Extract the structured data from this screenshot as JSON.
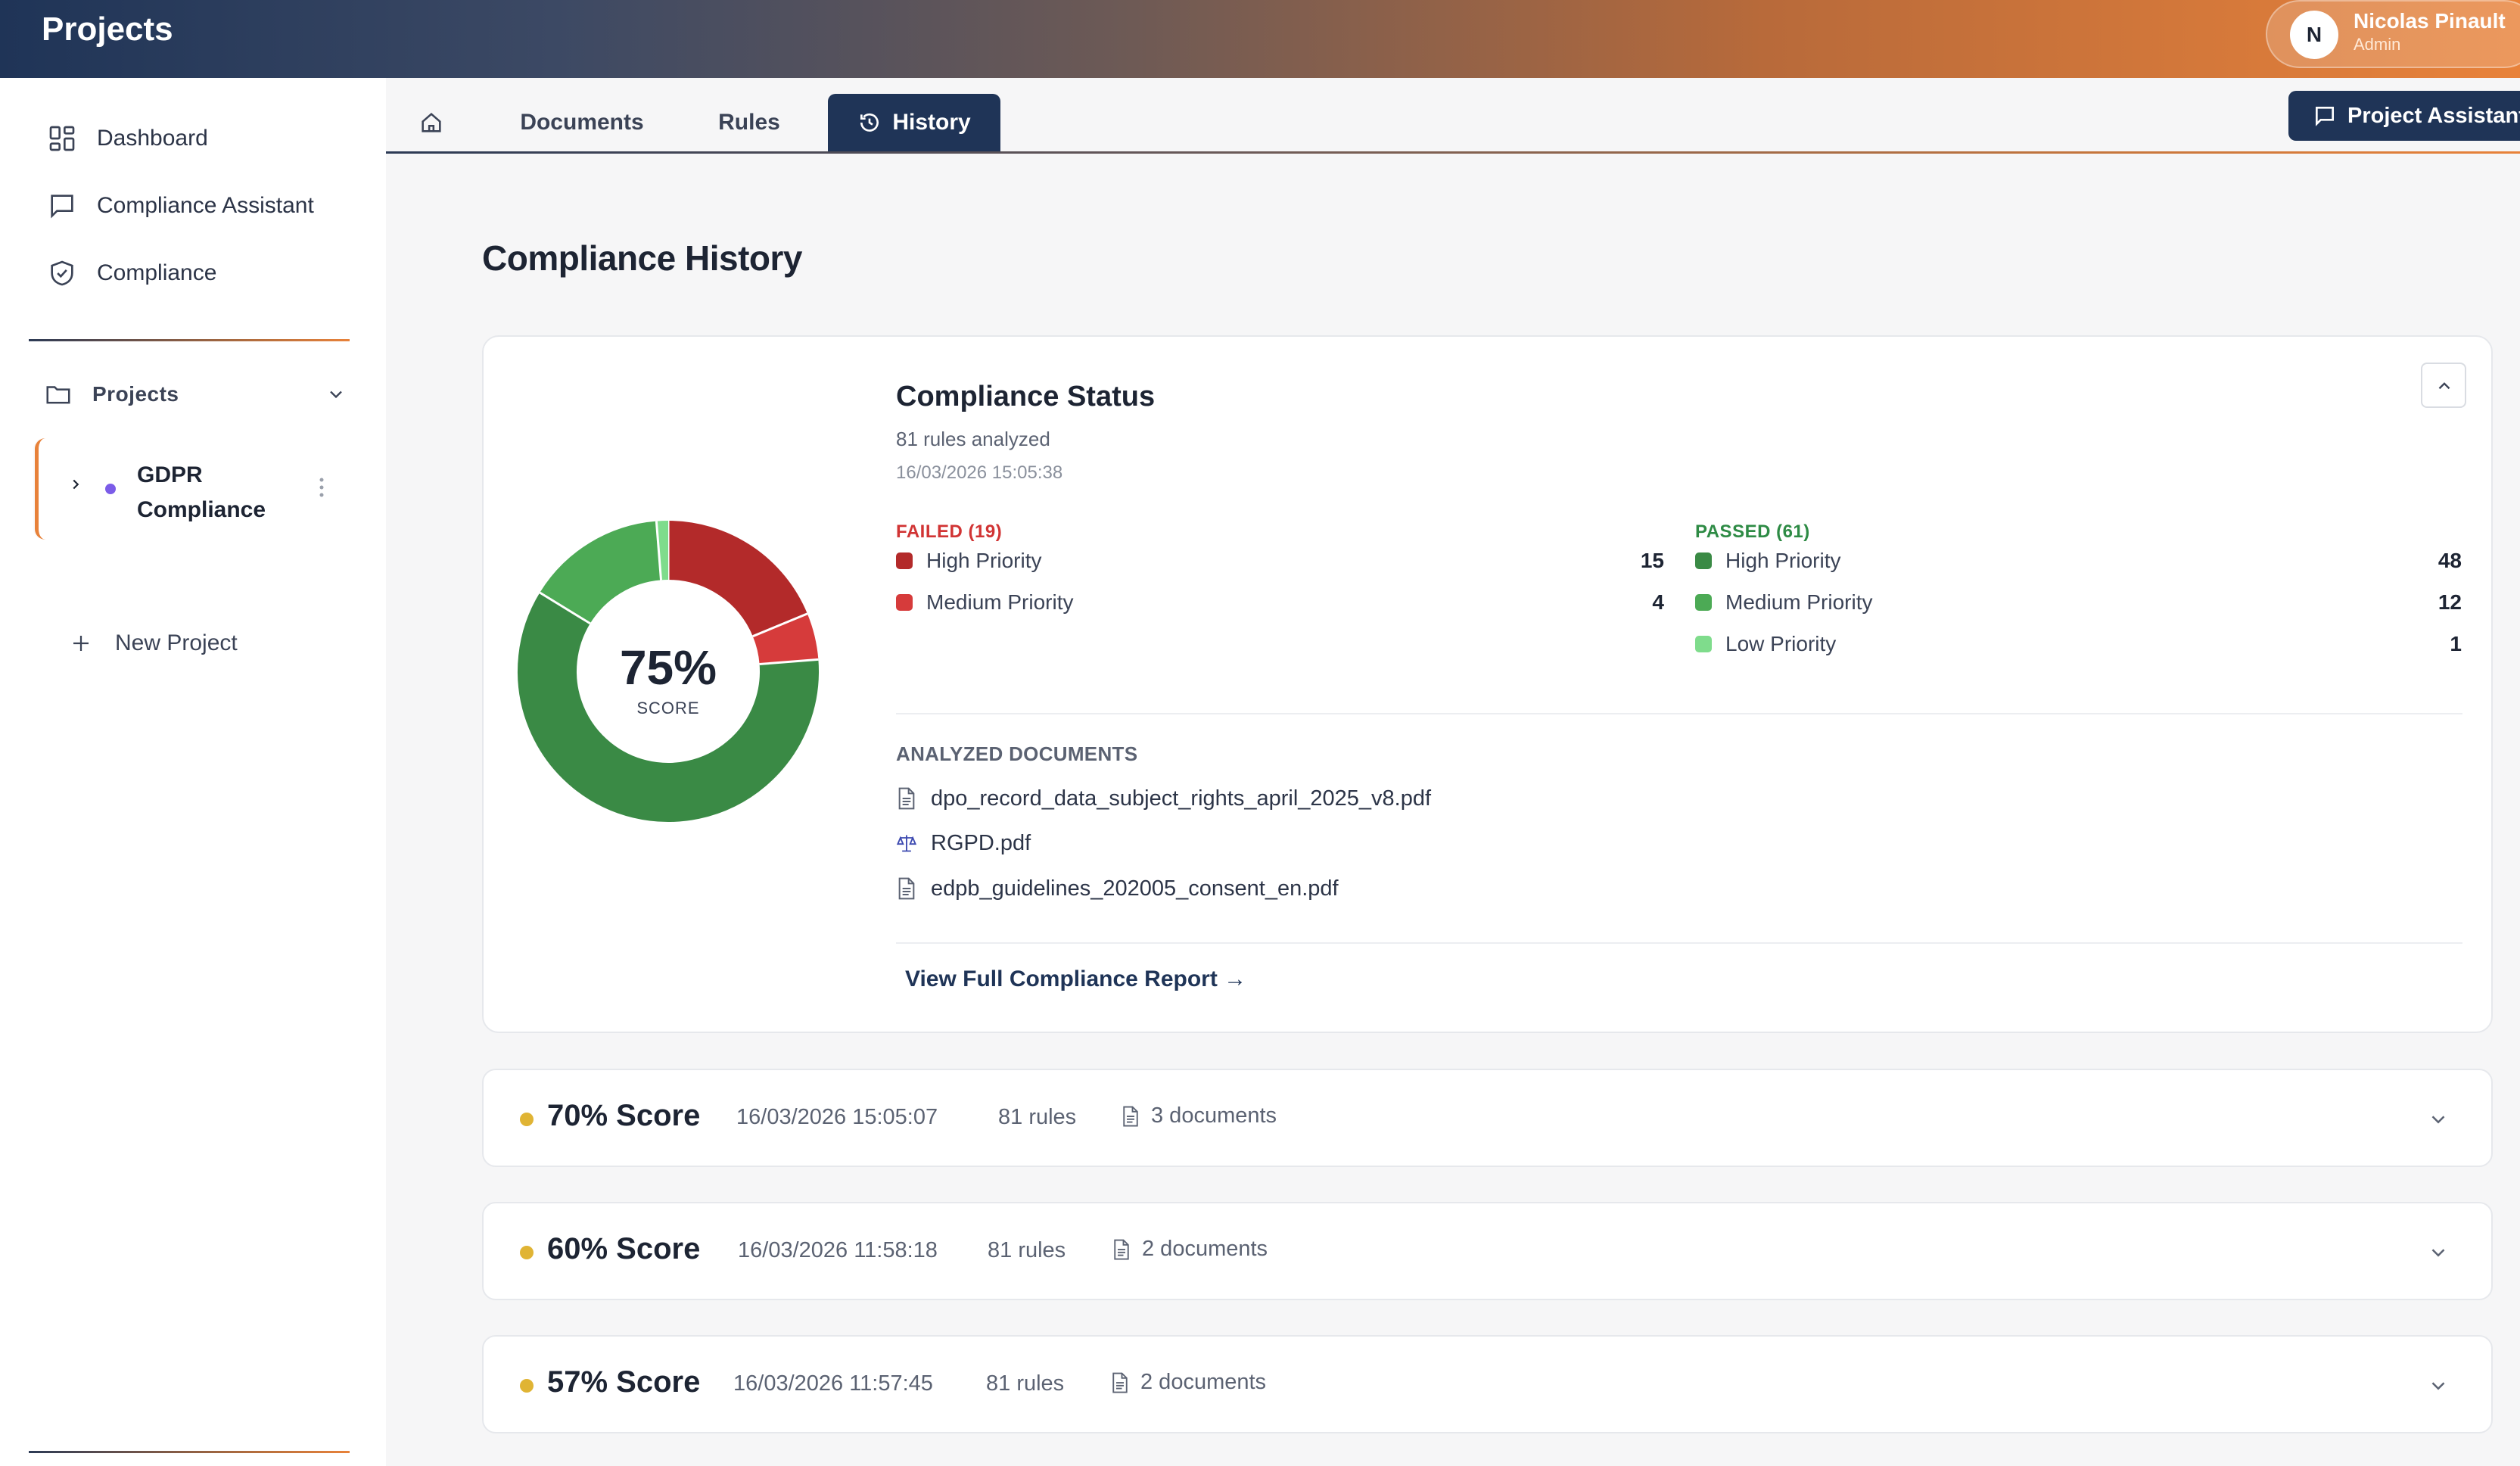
{
  "header": {
    "title": "Projects",
    "user": {
      "initial": "N",
      "name": "Nicolas Pinault",
      "role": "Admin"
    }
  },
  "sidebar": {
    "items": [
      {
        "label": "Dashboard",
        "icon": "dashboard-icon"
      },
      {
        "label": "Compliance Assistant",
        "icon": "chat-icon"
      },
      {
        "label": "Compliance",
        "icon": "shield-icon"
      }
    ],
    "projects_label": "Projects",
    "project": {
      "name": "GDPR Compliance",
      "dot_color": "#7b5ce8"
    },
    "new_project": "New Project"
  },
  "tabs": [
    {
      "label": "",
      "icon": "home-icon"
    },
    {
      "label": "Documents"
    },
    {
      "label": "Rules"
    },
    {
      "label": "History",
      "icon": "history-icon",
      "active": true
    }
  ],
  "assistant_button": "Project Assistant",
  "page_title": "Compliance History",
  "status": {
    "title": "Compliance Status",
    "rules_analyzed": "81 rules analyzed",
    "timestamp": "16/03/2026 15:05:38",
    "score": "75%",
    "score_label": "SCORE",
    "score_value": 75,
    "failed": {
      "heading": "FAILED (19)",
      "items": [
        {
          "label": "High Priority",
          "count": 15,
          "color": "#b32a2a"
        },
        {
          "label": "Medium Priority",
          "count": 4,
          "color": "#d63b3b"
        }
      ]
    },
    "passed": {
      "heading": "PASSED (61)",
      "items": [
        {
          "label": "High Priority",
          "count": 48,
          "color": "#3a8a45"
        },
        {
          "label": "Medium Priority",
          "count": 12,
          "color": "#4caa55"
        },
        {
          "label": "Low Priority",
          "count": 1,
          "color": "#7fdc8c"
        }
      ]
    },
    "analyzed_heading": "ANALYZED DOCUMENTS",
    "documents": [
      {
        "name": "dpo_record_data_subject_rights_april_2025_v8.pdf",
        "icon": "document-icon"
      },
      {
        "name": "RGPD.pdf",
        "icon": "scales-icon"
      },
      {
        "name": "edpb_guidelines_202005_consent_en.pdf",
        "icon": "document-icon"
      }
    ],
    "report_link": "View Full Compliance Report →"
  },
  "history": [
    {
      "score": "70% Score",
      "timestamp": "16/03/2026 15:05:07",
      "rules": "81 rules",
      "documents": "3 documents",
      "dot_color": "#e0b434"
    },
    {
      "score": "60% Score",
      "timestamp": "16/03/2026 11:58:18",
      "rules": "81 rules",
      "documents": "2 documents",
      "dot_color": "#e0b434"
    },
    {
      "score": "57% Score",
      "timestamp": "16/03/2026 11:57:45",
      "rules": "81 rules",
      "documents": "2 documents",
      "dot_color": "#e0b434"
    }
  ]
}
